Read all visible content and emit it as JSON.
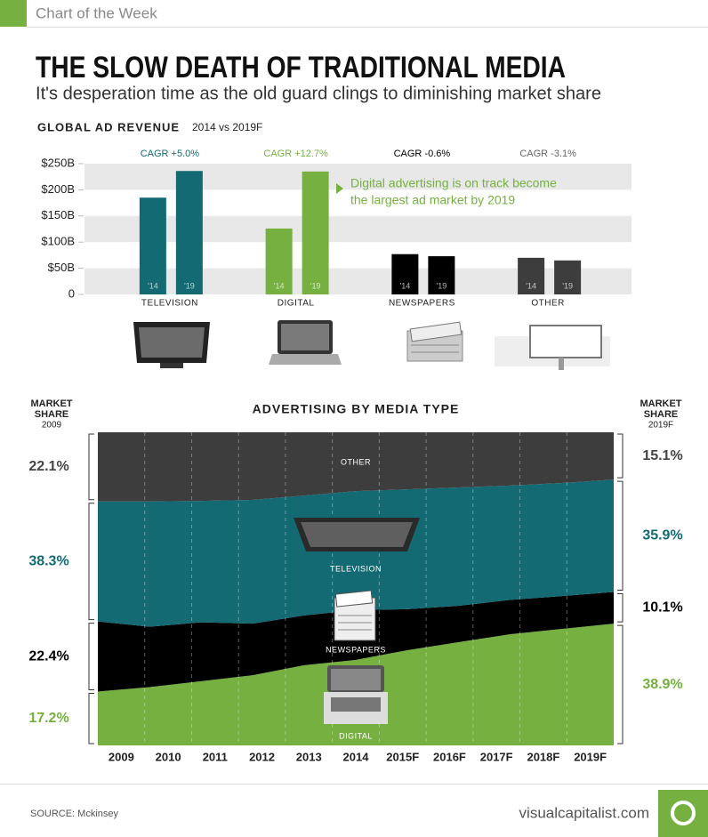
{
  "header": {
    "badge": "Chart of the Week",
    "title": "THE SLOW DEATH OF TRADITIONAL MEDIA",
    "subtitle": "It's desperation time as the old guard clings to diminishing market share"
  },
  "chart_data": [
    {
      "type": "bar",
      "title": "GLOBAL AD REVENUE",
      "subtitle": "2014 vs 2019F",
      "categories": [
        "TELEVISION",
        "DIGITAL",
        "NEWSPAPERS",
        "OTHER"
      ],
      "category_colors": [
        "#136a72",
        "#76b041",
        "#000000",
        "#3d3d3d"
      ],
      "cagr_labels": [
        "CAGR +5.0%",
        "CAGR +12.7%",
        "CAGR -0.6%",
        "CAGR -3.1%"
      ],
      "cagr_colors": [
        "#136a72",
        "#76b041",
        "#000000",
        "#666666"
      ],
      "series": [
        {
          "name": "'14",
          "values": [
            185,
            126,
            77,
            70
          ]
        },
        {
          "name": "'19",
          "values": [
            236,
            235,
            73,
            65
          ]
        }
      ],
      "ylim": [
        0,
        250
      ],
      "yticks": [
        0,
        {
          "value": 50,
          "label": "$50B"
        },
        {
          "value": 100,
          "label": "$100B"
        },
        {
          "value": 150,
          "label": "$150B"
        },
        {
          "value": 200,
          "label": "$200B"
        },
        {
          "value": 250,
          "label": "$250B"
        }
      ],
      "grid": true,
      "annotation": [
        "Digital advertising is on track become",
        "the largest ad market by 2019"
      ]
    },
    {
      "type": "stacked-area",
      "title": "ADVERTISING BY MEDIA TYPE",
      "left_header": {
        "title": [
          "MARKET",
          "SHARE"
        ],
        "year": "2009"
      },
      "right_header": {
        "title": [
          "MARKET",
          "SHARE"
        ],
        "year": "2019F"
      },
      "categories": [
        "2009",
        "2010",
        "2011",
        "2012",
        "2013",
        "2014",
        "2015F",
        "2016F",
        "2017F",
        "2018F",
        "2019F"
      ],
      "ylim": [
        0,
        100
      ],
      "series": [
        {
          "name": "DIGITAL",
          "color": "#76b041",
          "label_color": "#76b041",
          "values": [
            17.2,
            18.6,
            20.5,
            22.4,
            25.6,
            27.3,
            30.4,
            33.0,
            35.5,
            37.2,
            38.9
          ],
          "value_labels": [
            "17.2%",
            null,
            null,
            null,
            null,
            null,
            null,
            null,
            null,
            null,
            "38.9%"
          ]
        },
        {
          "name": "NEWSPAPERS",
          "color": "#000000",
          "label_color": "#000000",
          "values": [
            22.4,
            19.3,
            18.8,
            16.5,
            15.9,
            15.9,
            13.1,
            11.6,
            11.0,
            10.5,
            10.1
          ],
          "value_labels": [
            "22.4%",
            null,
            null,
            null,
            null,
            null,
            null,
            null,
            null,
            null,
            "10.1%"
          ]
        },
        {
          "name": "TELEVISION",
          "color": "#136a72",
          "label_color": "#136a72",
          "values": [
            38.3,
            40.0,
            38.8,
            39.5,
            38.3,
            38.0,
            38.3,
            37.8,
            36.5,
            36.1,
            35.9
          ],
          "value_labels": [
            "38.3%",
            null,
            null,
            null,
            null,
            null,
            null,
            null,
            null,
            null,
            "35.9%"
          ]
        },
        {
          "name": "OTHER",
          "color": "#3d3d3d",
          "label_color": "#444444",
          "values": [
            22.1,
            22.1,
            21.9,
            21.6,
            20.2,
            18.8,
            18.2,
            17.6,
            17.0,
            16.2,
            15.1
          ],
          "value_labels": [
            "22.1%",
            null,
            null,
            null,
            null,
            null,
            null,
            null,
            null,
            null,
            "15.1%"
          ]
        }
      ]
    }
  ],
  "footer": {
    "source": "SOURCE: Mckinsey",
    "site": "visualcapitalist.com"
  }
}
